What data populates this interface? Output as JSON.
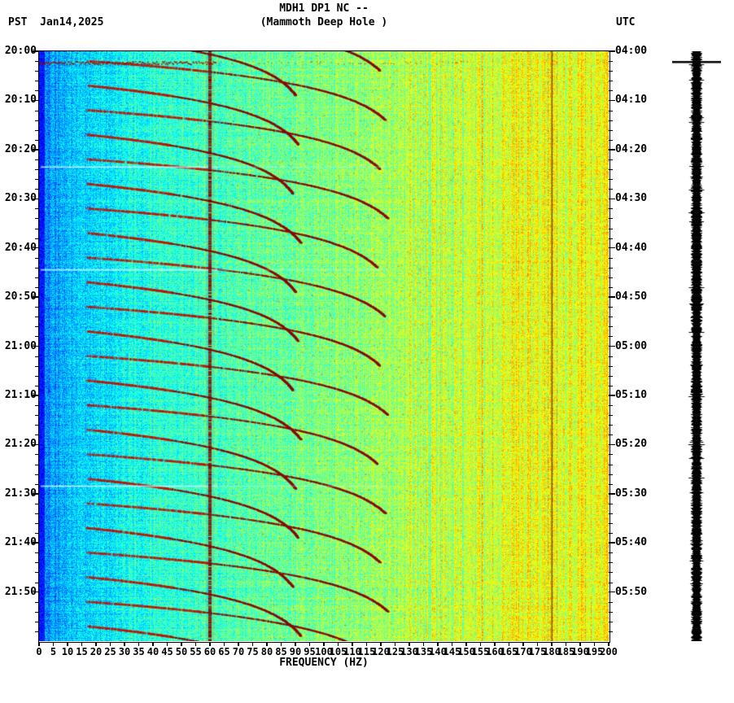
{
  "header": {
    "left_text": "PST  Jan14,2025",
    "title": "MDH1 DP1 NC --",
    "subtitle": "(Mammoth Deep Hole )",
    "right_label": "UTC"
  },
  "chart_data": {
    "type": "heatmap",
    "title": "MDH1 DP1 NC --",
    "subtitle": "(Mammoth Deep Hole )",
    "station_name": "Mammoth Deep Hole",
    "date": "Jan14,2025",
    "timezone_left": "PST",
    "timezone_right": "UTC",
    "xlabel": "FREQUENCY (HZ)",
    "x_range_hz": [
      0,
      200
    ],
    "x_tick_step_hz": 5,
    "x_tick_labels": [
      "0",
      "5",
      "10",
      "15",
      "20",
      "25",
      "30",
      "35",
      "40",
      "45",
      "50",
      "55",
      "60",
      "65",
      "70",
      "75",
      "80",
      "85",
      "90",
      "95",
      "100",
      "105",
      "110",
      "115",
      "120",
      "125",
      "130",
      "135",
      "140",
      "145",
      "150",
      "155",
      "160",
      "165",
      "170",
      "175",
      "180",
      "185",
      "190",
      "195",
      "200"
    ],
    "time_span_minutes": 120,
    "y_tick_interval_minutes": 10,
    "y_minor_tick_minutes": 2,
    "pst_tick_labels": [
      "20:00",
      "20:10",
      "20:20",
      "20:30",
      "20:40",
      "20:50",
      "21:00",
      "21:10",
      "21:20",
      "21:30",
      "21:40",
      "21:50"
    ],
    "utc_tick_labels": [
      "04:00",
      "04:10",
      "04:20",
      "04:30",
      "04:40",
      "04:50",
      "05:00",
      "05:10",
      "05:20",
      "05:30",
      "05:40",
      "05:50"
    ],
    "colormap": "jet",
    "features": {
      "powerline_hz": 60,
      "powerline_harmonic_hz": 180,
      "event_description": "repeating upward-gliding harmonic tremor arcs rising from ~17 Hz toward 95-130 Hz",
      "arc_f0_hz": 17,
      "arc_duration_min": 12,
      "strong_event_minute": 2.2,
      "gap_minutes": [
        23.4,
        44.3,
        88.3
      ],
      "events": [
        {
          "t": -8,
          "fmax": 128
        },
        {
          "t": -3,
          "fmax": 96
        },
        {
          "t": 2,
          "fmax": 130
        },
        {
          "t": 7,
          "fmax": 97
        },
        {
          "t": 12,
          "fmax": 128
        },
        {
          "t": 17,
          "fmax": 95
        },
        {
          "t": 22,
          "fmax": 131
        },
        {
          "t": 27,
          "fmax": 98
        },
        {
          "t": 32,
          "fmax": 127
        },
        {
          "t": 37,
          "fmax": 96
        },
        {
          "t": 42,
          "fmax": 130
        },
        {
          "t": 47,
          "fmax": 97
        },
        {
          "t": 52,
          "fmax": 128
        },
        {
          "t": 57,
          "fmax": 95
        },
        {
          "t": 62,
          "fmax": 131
        },
        {
          "t": 67,
          "fmax": 98
        },
        {
          "t": 72,
          "fmax": 127
        },
        {
          "t": 77,
          "fmax": 96
        },
        {
          "t": 82,
          "fmax": 130
        },
        {
          "t": 87,
          "fmax": 97
        },
        {
          "t": 92,
          "fmax": 128
        },
        {
          "t": 97,
          "fmax": 95
        },
        {
          "t": 102,
          "fmax": 131
        },
        {
          "t": 107,
          "fmax": 98
        },
        {
          "t": 112,
          "fmax": 127
        },
        {
          "t": 117,
          "fmax": 96
        }
      ]
    },
    "side_trace": {
      "present": true,
      "description": "black amplitude trace strip at right",
      "marker_minute": 2.2
    },
    "colors": {
      "background": "#ffffff",
      "text": "#000000",
      "powerline_band": "#780000",
      "arc_dark": "#8c0a00",
      "arc_bright": "#be1400",
      "gap_streak": "#d2ffff",
      "trace": "#000000"
    }
  }
}
